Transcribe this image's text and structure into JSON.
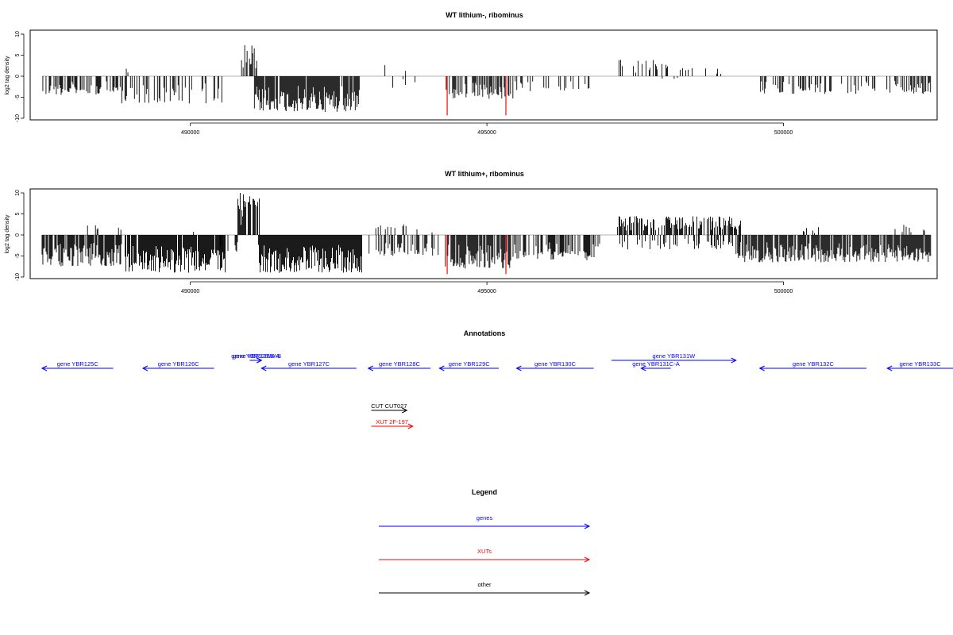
{
  "chart_data": [
    {
      "type": "bar",
      "title": "WT lithium-, ribominus",
      "ylabel": "log2 tag density",
      "xlim": [
        487300,
        502590
      ],
      "ylim": [
        -10,
        10
      ],
      "yticks": [
        -10,
        -5,
        0,
        5,
        10
      ],
      "ytick_labels": [
        "-10",
        "-5",
        "0",
        "5",
        "10"
      ],
      "xticks": [
        490000,
        495000,
        500000
      ],
      "xtick_labels": [
        "490000",
        "495000",
        "500000"
      ],
      "baseline": 0,
      "highlight_color": "#ff0000",
      "highlights": [
        {
          "x": 494330,
          "y": -9.3
        },
        {
          "x": 495320,
          "y": -9.3
        }
      ],
      "density": [
        {
          "start": 487500,
          "end": 488800,
          "min": -4.5,
          "max": 0,
          "fill": 0.55
        },
        {
          "start": 488800,
          "end": 489000,
          "min": 0,
          "max": 2.3,
          "fill": 0.12
        },
        {
          "start": 488750,
          "end": 490550,
          "min": -6.5,
          "max": 0,
          "fill": 0.4
        },
        {
          "start": 490810,
          "end": 491120,
          "min": 0,
          "max": 8,
          "fill": 0.45
        },
        {
          "start": 491080,
          "end": 492850,
          "min": -8.5,
          "max": 0,
          "fill": 0.95
        },
        {
          "start": 493200,
          "end": 493800,
          "min": 0,
          "max": 3.2,
          "fill": 0.08
        },
        {
          "start": 493400,
          "end": 493900,
          "min": -2.8,
          "max": 0,
          "fill": 0.06
        },
        {
          "start": 494300,
          "end": 495450,
          "min": -5.5,
          "max": 0,
          "fill": 0.5
        },
        {
          "start": 495450,
          "end": 496900,
          "min": -3.8,
          "max": 0,
          "fill": 0.2
        },
        {
          "start": 497200,
          "end": 498300,
          "min": 0,
          "max": 4,
          "fill": 0.25
        },
        {
          "start": 497300,
          "end": 498500,
          "min": -0.8,
          "max": 0,
          "fill": 0.04
        },
        {
          "start": 498300,
          "end": 499000,
          "min": 0,
          "max": 2,
          "fill": 0.1
        },
        {
          "start": 499600,
          "end": 502500,
          "min": -4.2,
          "max": 0,
          "fill": 0.35
        }
      ]
    },
    {
      "type": "bar",
      "title": "WT lithium+, ribominus",
      "ylabel": "log2 tag density",
      "xlim": [
        487300,
        502590
      ],
      "ylim": [
        -10,
        10
      ],
      "yticks": [
        -10,
        -5,
        0,
        5,
        10
      ],
      "ytick_labels": [
        "-10",
        "-5",
        "0",
        "5",
        "10"
      ],
      "xticks": [
        490000,
        495000,
        500000
      ],
      "xtick_labels": [
        "490000",
        "495000",
        "500000"
      ],
      "baseline": 0,
      "highlight_color": "#ff0000",
      "highlights": [
        {
          "x": 494330,
          "y": -9.3
        },
        {
          "x": 495320,
          "y": -9.3
        }
      ],
      "density": [
        {
          "start": 487500,
          "end": 488850,
          "min": -7.5,
          "max": 0,
          "fill": 0.85
        },
        {
          "start": 488200,
          "end": 488850,
          "min": 0,
          "max": 2.3,
          "fill": 0.06
        },
        {
          "start": 488900,
          "end": 490600,
          "min": -9,
          "max": 0,
          "fill": 0.9
        },
        {
          "start": 490000,
          "end": 490100,
          "min": 0,
          "max": 2,
          "fill": 0.3
        },
        {
          "start": 490500,
          "end": 490800,
          "min": -4.5,
          "max": 0,
          "fill": 0.4
        },
        {
          "start": 490800,
          "end": 491200,
          "min": 0,
          "max": 10,
          "fill": 0.75
        },
        {
          "start": 491150,
          "end": 492900,
          "min": -9,
          "max": 0,
          "fill": 1.0
        },
        {
          "start": 493100,
          "end": 493650,
          "min": 0,
          "max": 2.7,
          "fill": 0.25
        },
        {
          "start": 493000,
          "end": 494200,
          "min": -5,
          "max": 0,
          "fill": 0.45
        },
        {
          "start": 493700,
          "end": 494200,
          "min": 0,
          "max": 1.6,
          "fill": 0.1
        },
        {
          "start": 494300,
          "end": 495400,
          "min": -8,
          "max": 0,
          "fill": 0.9
        },
        {
          "start": 495400,
          "end": 496900,
          "min": -6,
          "max": 0,
          "fill": 0.55
        },
        {
          "start": 497200,
          "end": 499300,
          "min": 0,
          "max": 4.5,
          "fill": 0.6
        },
        {
          "start": 497200,
          "end": 499300,
          "min": -3.5,
          "max": 0,
          "fill": 0.3
        },
        {
          "start": 499200,
          "end": 502500,
          "min": -6.5,
          "max": 0,
          "fill": 0.85
        },
        {
          "start": 500200,
          "end": 500700,
          "min": 0,
          "max": 2,
          "fill": 0.12
        },
        {
          "start": 501800,
          "end": 502400,
          "min": 0,
          "max": 2.5,
          "fill": 0.15
        }
      ]
    }
  ],
  "annotations": {
    "title": "Annotations",
    "genes_color": "#0000ff",
    "xuts_color": "#ff0000",
    "other_color": "#000000",
    "features": [
      {
        "label": "gene YBR125C",
        "start": 487500,
        "end": 488700,
        "strand": "-",
        "row": 0,
        "kind": "genes"
      },
      {
        "label": "gene YBR126C",
        "start": 489200,
        "end": 490400,
        "strand": "-",
        "row": 0,
        "kind": "genes"
      },
      {
        "label": "gene YBR126W-A",
        "start": 491000,
        "end": 491200,
        "strand": "+",
        "row": -1,
        "kind": "genes"
      },
      {
        "label": "gene YBR126W-B",
        "start": 491050,
        "end": 491200,
        "strand": "+",
        "row": -1,
        "kind": "genes"
      },
      {
        "label": "gene YBR127C",
        "start": 491200,
        "end": 492800,
        "strand": "-",
        "row": 0,
        "kind": "genes"
      },
      {
        "label": "gene YBR128C",
        "start": 493000,
        "end": 494050,
        "strand": "-",
        "row": 0,
        "kind": "genes"
      },
      {
        "label": "gene YBR129C",
        "start": 494200,
        "end": 495200,
        "strand": "-",
        "row": 0,
        "kind": "genes"
      },
      {
        "label": "gene YBR130C",
        "start": 495500,
        "end": 496800,
        "strand": "-",
        "row": 0,
        "kind": "genes"
      },
      {
        "label": "gene YBR131W",
        "start": 497100,
        "end": 499200,
        "strand": "+",
        "row": -1,
        "kind": "genes"
      },
      {
        "label": "gene YBR131C-A",
        "start": 497600,
        "end": 498100,
        "strand": "-",
        "row": 0,
        "kind": "genes"
      },
      {
        "label": "gene YBR132C",
        "start": 499600,
        "end": 501400,
        "strand": "-",
        "row": 0,
        "kind": "genes"
      },
      {
        "label": "gene YBR133C",
        "start": 501750,
        "end": 503500,
        "strand": "-",
        "row": 0,
        "kind": "genes"
      },
      {
        "label": "CUT CUT027",
        "start": 493050,
        "end": 493650,
        "strand": "+",
        "row": 2,
        "kind": "other"
      },
      {
        "label": "XUT 2F-197",
        "start": 493050,
        "end": 493750,
        "strand": "+",
        "row": 3,
        "kind": "xuts"
      }
    ]
  },
  "legend": {
    "title": "Legend",
    "items": [
      {
        "label": "genes",
        "color": "#0000ff"
      },
      {
        "label": "XUTs",
        "color": "#ff0000"
      },
      {
        "label": "other",
        "color": "#000000"
      }
    ]
  }
}
